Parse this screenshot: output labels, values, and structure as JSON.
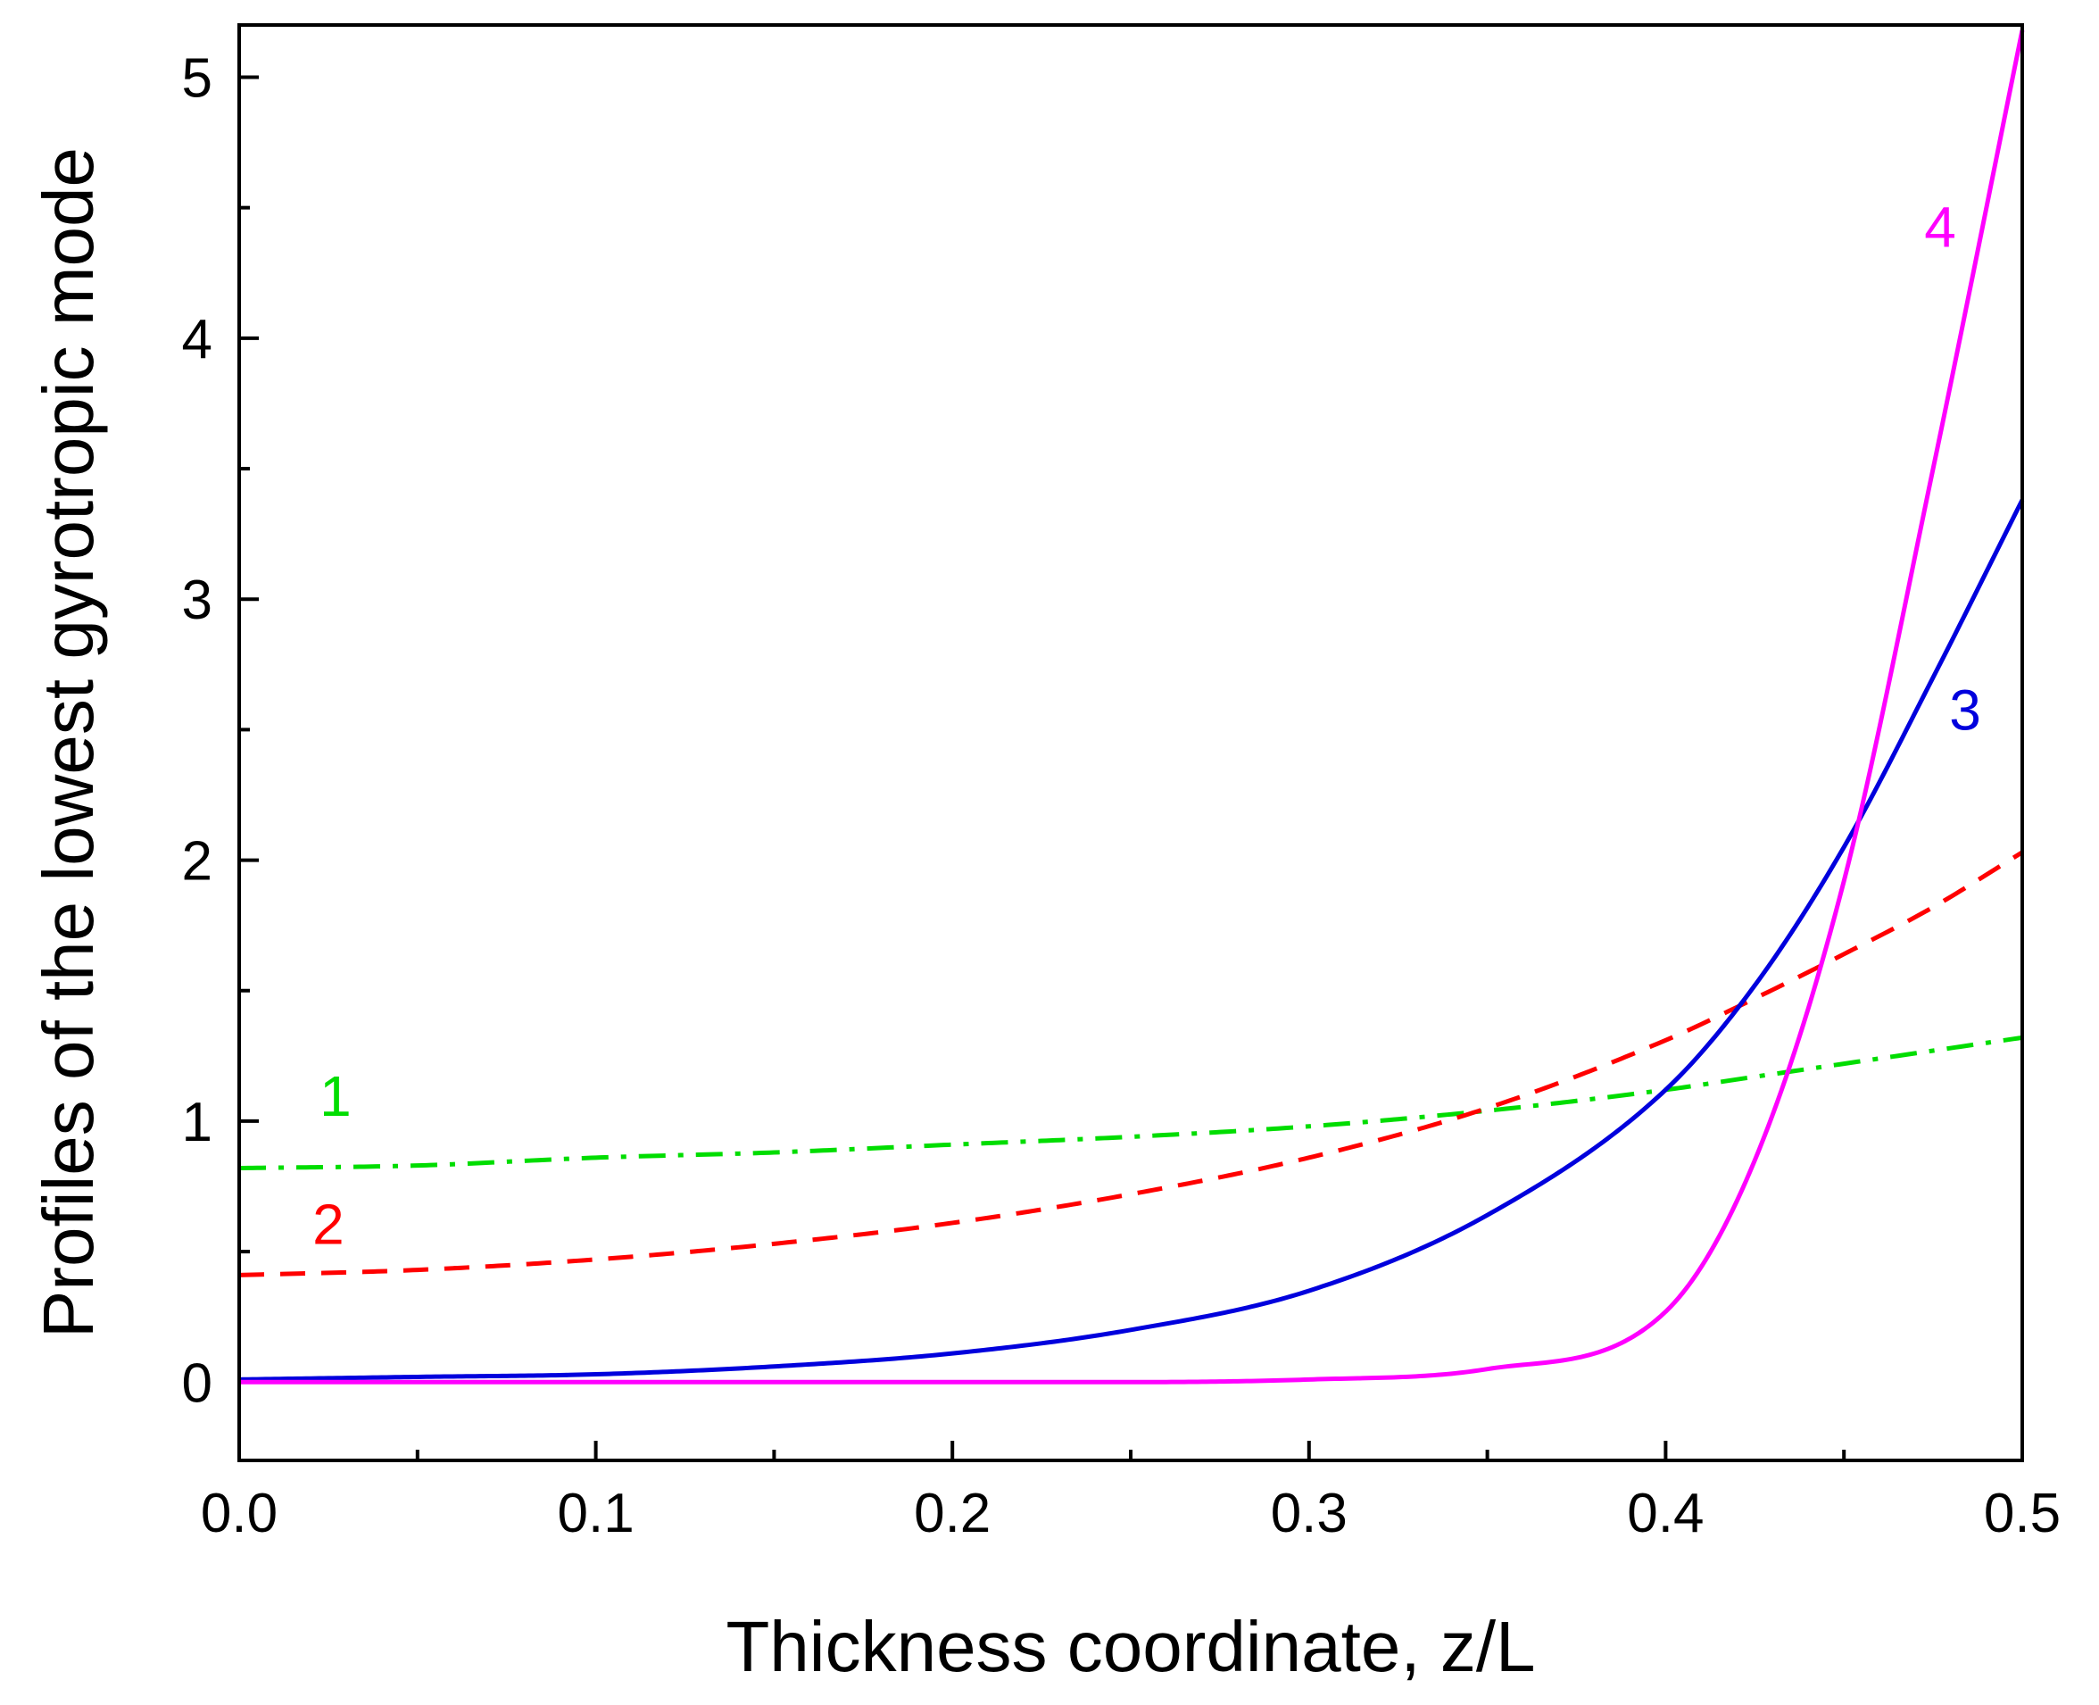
{
  "chart_data": {
    "type": "line",
    "title": "",
    "xlabel": "Thickness coordinate, z/L",
    "ylabel": "Profiles of the lowest gyrotropic mode",
    "xlim": [
      0.0,
      0.5
    ],
    "ylim": [
      -0.3,
      5.2
    ],
    "grid": false,
    "x_major_ticks": [
      0.0,
      0.1,
      0.2,
      0.3,
      0.4,
      0.5
    ],
    "x_tick_labels": [
      "0.0",
      "0.1",
      "0.2",
      "0.3",
      "0.4",
      "0.5"
    ],
    "x_minor_ticks": [
      0.05,
      0.15,
      0.25,
      0.35,
      0.45
    ],
    "y_major_ticks": [
      0,
      1,
      2,
      3,
      4,
      5
    ],
    "y_tick_labels": [
      "0",
      "1",
      "2",
      "3",
      "4",
      "5"
    ],
    "y_minor_ticks": [
      0.5,
      1.5,
      2.5,
      3.5,
      4.5
    ],
    "x": [
      0.0,
      0.05,
      0.1,
      0.15,
      0.2,
      0.25,
      0.3,
      0.35,
      0.4,
      0.425,
      0.45,
      0.475,
      0.5
    ],
    "series": [
      {
        "name": "1",
        "label": "1",
        "color": "#00dd00",
        "style": "dashdot",
        "values": [
          0.82,
          0.83,
          0.86,
          0.88,
          0.91,
          0.94,
          0.98,
          1.04,
          1.12,
          1.17,
          1.22,
          1.27,
          1.32
        ]
      },
      {
        "name": "2",
        "label": "2",
        "color": "#ff0000",
        "style": "dashed",
        "values": [
          0.41,
          0.43,
          0.47,
          0.53,
          0.61,
          0.72,
          0.86,
          1.05,
          1.31,
          1.47,
          1.64,
          1.82,
          2.03
        ]
      },
      {
        "name": "3",
        "label": "3",
        "color": "#0000dd",
        "style": "solid",
        "values": [
          0.01,
          0.02,
          0.03,
          0.06,
          0.11,
          0.2,
          0.35,
          0.64,
          1.12,
          1.52,
          2.05,
          2.7,
          3.38
        ]
      },
      {
        "name": "4",
        "label": "4",
        "color": "#ff00ff",
        "style": "solid",
        "values": [
          0.0,
          0.0,
          0.0,
          0.0,
          0.0,
          0.0,
          0.01,
          0.05,
          0.27,
          0.85,
          1.92,
          3.5,
          5.18
        ]
      }
    ],
    "annotations": [
      {
        "text": "1",
        "x": 0.027,
        "y": 1.02,
        "color": "#00dd00"
      },
      {
        "text": "2",
        "x": 0.025,
        "y": 0.53,
        "color": "#ff0000"
      },
      {
        "text": "3",
        "x": 0.484,
        "y": 2.5,
        "color": "#0000dd"
      },
      {
        "text": "4",
        "x": 0.477,
        "y": 4.35,
        "color": "#ff00ff"
      }
    ]
  }
}
